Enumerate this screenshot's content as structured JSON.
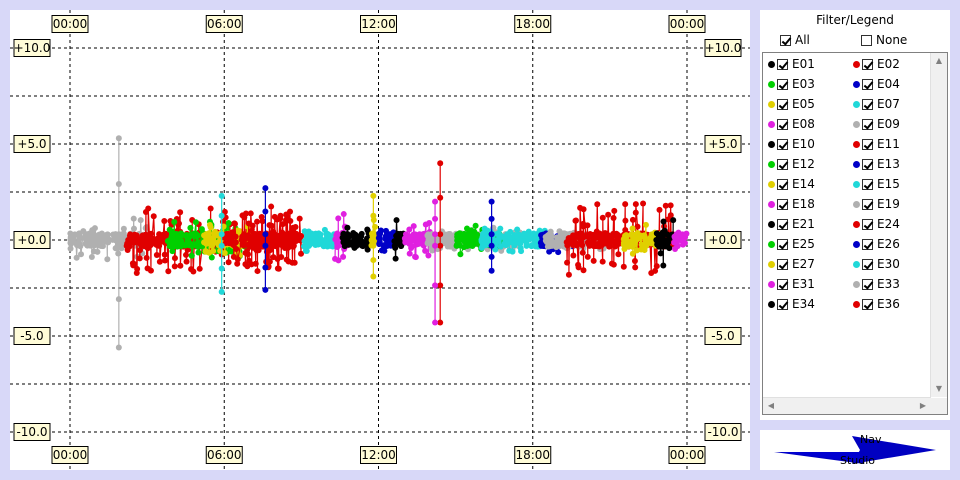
{
  "chart_data": {
    "type": "scatter",
    "x_tick_labels": [
      "00:00",
      "06:00",
      "12:00",
      "18:00",
      "00:00"
    ],
    "x_range_hours": [
      0,
      24
    ],
    "y_tick_labels": [
      "+10.0",
      "+5.0",
      "+0.0",
      "-5.0",
      "-10.0"
    ],
    "y_ticks": [
      10,
      5,
      0,
      -5,
      -10
    ],
    "ylim": [
      -10,
      10
    ],
    "grid": true,
    "series": [
      {
        "name": "E01",
        "color": "#000000"
      },
      {
        "name": "E02",
        "color": "#e00000"
      },
      {
        "name": "E03",
        "color": "#00d000"
      },
      {
        "name": "E04",
        "color": "#0000c8"
      },
      {
        "name": "E05",
        "color": "#e0d000"
      },
      {
        "name": "E07",
        "color": "#20d8d8"
      },
      {
        "name": "E08",
        "color": "#e020e0"
      },
      {
        "name": "E09",
        "color": "#b0b0b0"
      },
      {
        "name": "E10",
        "color": "#000000"
      },
      {
        "name": "E11",
        "color": "#e00000"
      },
      {
        "name": "E12",
        "color": "#00d000"
      },
      {
        "name": "E13",
        "color": "#0000c8"
      },
      {
        "name": "E14",
        "color": "#e0d000"
      },
      {
        "name": "E15",
        "color": "#20d8d8"
      },
      {
        "name": "E18",
        "color": "#e020e0"
      },
      {
        "name": "E19",
        "color": "#b0b0b0"
      },
      {
        "name": "E21",
        "color": "#000000"
      },
      {
        "name": "E24",
        "color": "#e00000"
      },
      {
        "name": "E25",
        "color": "#00d000"
      },
      {
        "name": "E26",
        "color": "#0000c8"
      },
      {
        "name": "E27",
        "color": "#e0d000"
      },
      {
        "name": "E30",
        "color": "#20d8d8"
      },
      {
        "name": "E31",
        "color": "#e020e0"
      },
      {
        "name": "E33",
        "color": "#b0b0b0"
      },
      {
        "name": "E34",
        "color": "#000000"
      },
      {
        "name": "E36",
        "color": "#e00000"
      }
    ],
    "segments": [
      {
        "name": "E09",
        "t0": 0.0,
        "t1": 3.0,
        "amp": 0.7
      },
      {
        "name": "E02",
        "t0": 2.2,
        "t1": 9.0,
        "amp": 1.1
      },
      {
        "name": "E03",
        "t0": 3.8,
        "t1": 6.8,
        "amp": 0.6
      },
      {
        "name": "E05",
        "t0": 5.2,
        "t1": 7.0,
        "amp": 0.5
      },
      {
        "name": "E02",
        "t0": 6.0,
        "t1": 8.8,
        "amp": 0.8
      },
      {
        "name": "E07",
        "t0": 9.1,
        "t1": 10.3,
        "amp": 0.4
      },
      {
        "name": "E08",
        "t0": 10.3,
        "t1": 10.9,
        "amp": 0.9
      },
      {
        "name": "E01",
        "t0": 10.6,
        "t1": 11.7,
        "amp": 0.5
      },
      {
        "name": "E05",
        "t0": 11.7,
        "t1": 11.95,
        "amp": 0.7
      },
      {
        "name": "E04",
        "t0": 11.95,
        "t1": 12.6,
        "amp": 0.4
      },
      {
        "name": "E01",
        "t0": 12.6,
        "t1": 13.0,
        "amp": 0.8
      },
      {
        "name": "E08",
        "t0": 13.0,
        "t1": 14.0,
        "amp": 0.6
      },
      {
        "name": "E09",
        "t0": 13.9,
        "t1": 17.5,
        "amp": 0.4
      },
      {
        "name": "E03",
        "t0": 15.0,
        "t1": 16.8,
        "amp": 0.5
      },
      {
        "name": "E07",
        "t0": 16.0,
        "t1": 18.5,
        "amp": 0.4
      },
      {
        "name": "E04",
        "t0": 18.3,
        "t1": 19.6,
        "amp": 0.4
      },
      {
        "name": "E09",
        "t0": 18.5,
        "t1": 20.8,
        "amp": 0.3
      },
      {
        "name": "E02",
        "t0": 19.3,
        "t1": 23.5,
        "amp": 1.2
      },
      {
        "name": "E05",
        "t0": 21.5,
        "t1": 23.0,
        "amp": 0.5
      },
      {
        "name": "E01",
        "t0": 22.8,
        "t1": 23.5,
        "amp": 0.9
      },
      {
        "name": "E08",
        "t0": 23.5,
        "t1": 24.0,
        "amp": 0.3
      }
    ],
    "spikes": [
      {
        "name": "E09",
        "t": 1.9,
        "ymax": 5.3,
        "ymin": -5.6
      },
      {
        "name": "E07",
        "t": 5.9,
        "ymax": 2.3,
        "ymin": -2.7
      },
      {
        "name": "E04",
        "t": 7.6,
        "ymax": 2.7,
        "ymin": -2.6
      },
      {
        "name": "E05",
        "t": 11.8,
        "ymax": 2.3,
        "ymin": -1.9
      },
      {
        "name": "E02",
        "t": 14.4,
        "ymax": 4.0,
        "ymin": -4.3
      },
      {
        "name": "E08",
        "t": 14.2,
        "ymax": 2.0,
        "ymin": -4.3
      },
      {
        "name": "E04",
        "t": 16.4,
        "ymax": 2.0,
        "ymin": -1.6
      }
    ]
  },
  "panel": {
    "title": "Filter/Legend",
    "all_label": "All",
    "none_label": "None",
    "all_checked": true,
    "none_checked": false
  },
  "nav": {
    "label_top": "Nav",
    "label_bottom": "Studio"
  }
}
